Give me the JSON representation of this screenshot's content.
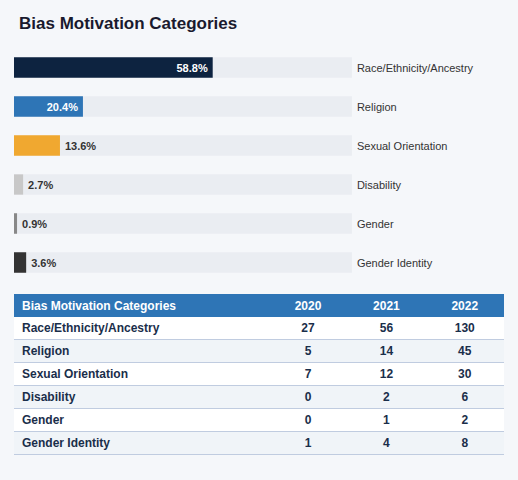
{
  "chart_data": [
    {
      "type": "bar",
      "title": "Bias Motivation Categories",
      "orientation": "horizontal",
      "categories": [
        "Race/Ethnicity/Ancestry",
        "Religion",
        "Sexual Orientation",
        "Disability",
        "Gender",
        "Gender Identity"
      ],
      "values": [
        58.8,
        20.4,
        13.6,
        2.7,
        0.9,
        3.6
      ],
      "value_labels": [
        "58.8%",
        "20.4%",
        "13.6%",
        "2.7%",
        "0.9%",
        "3.6%"
      ],
      "colors": [
        "#0d2340",
        "#2e75b6",
        "#f0a830",
        "#c8c8c8",
        "#888888",
        "#333333"
      ],
      "full_scale": 100,
      "xlim": [
        0,
        145
      ],
      "tick_labels": false,
      "grid": false,
      "data_labels": true
    },
    {
      "type": "table",
      "title": "Bias Motivation Categories",
      "categories": [
        "Race/Ethnicity/Ancestry",
        "Religion",
        "Sexual Orientation",
        "Disability",
        "Gender",
        "Gender Identity"
      ],
      "series": [
        {
          "name": "2020",
          "values": [
            27,
            5,
            7,
            0,
            0,
            1
          ]
        },
        {
          "name": "2021",
          "values": [
            56,
            14,
            12,
            2,
            1,
            4
          ]
        },
        {
          "name": "2022",
          "values": [
            130,
            45,
            30,
            6,
            2,
            8
          ]
        }
      ]
    }
  ]
}
